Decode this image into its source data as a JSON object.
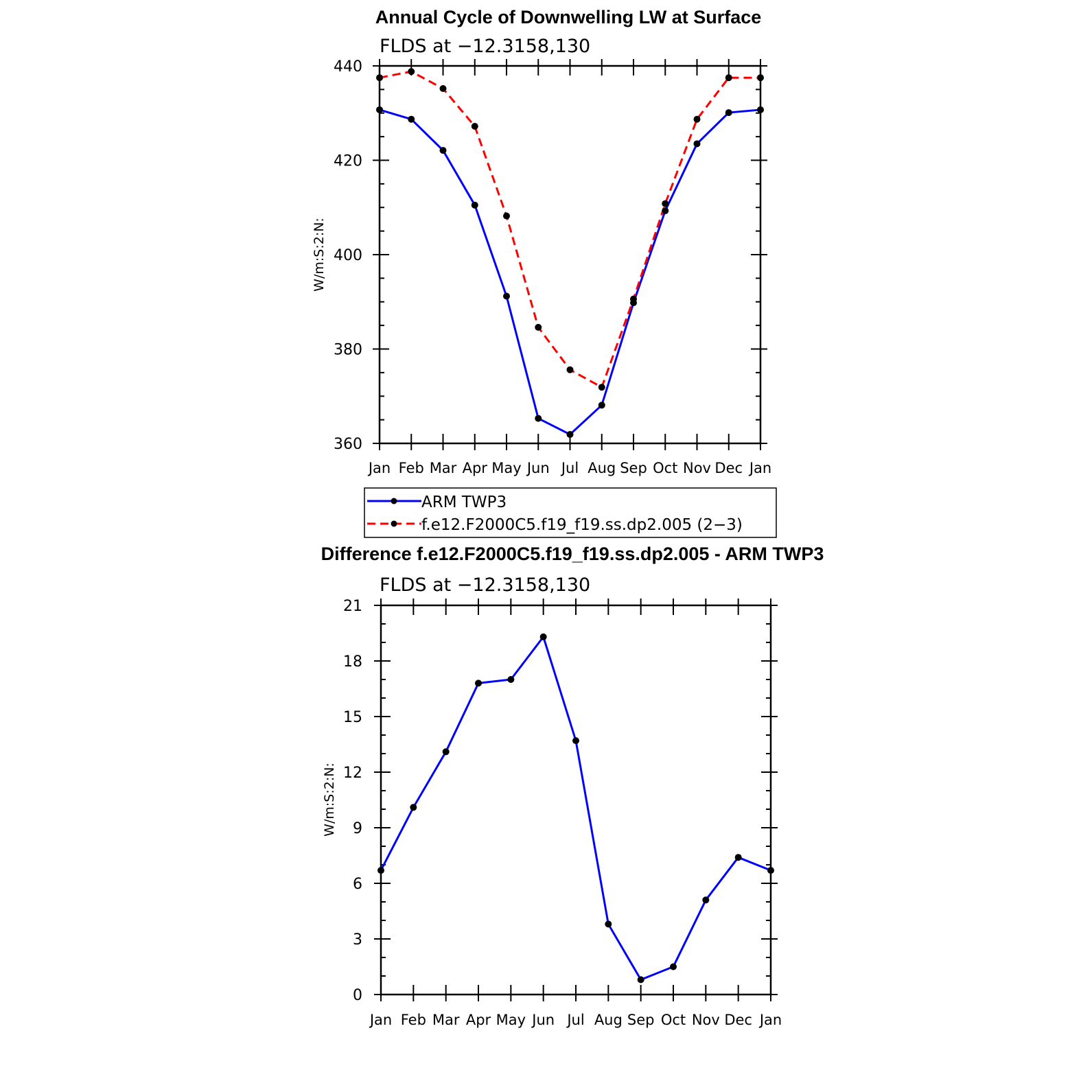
{
  "chart_data": [
    {
      "type": "line",
      "title": "Annual Cycle of Downwelling LW at Surface",
      "subtitle": "FLDS at −12.3158,130",
      "ylabel": "W/m:S:2:N:",
      "xlabel": "",
      "categories": [
        "Jan",
        "Feb",
        "Mar",
        "Apr",
        "May",
        "Jun",
        "Jul",
        "Aug",
        "Sep",
        "Oct",
        "Nov",
        "Dec",
        "Jan"
      ],
      "ylim": [
        360,
        440
      ],
      "yticks": [
        360,
        380,
        400,
        420,
        440
      ],
      "yticklabels": [
        "360",
        "380",
        "400",
        "420",
        "440"
      ],
      "legend_position": "below",
      "series": [
        {
          "name": "ARM TWP3",
          "color": "#0000ff",
          "dash": "solid",
          "values": [
            430.7,
            428.7,
            422.1,
            410.5,
            391.2,
            365.3,
            361.9,
            368.1,
            389.8,
            409.3,
            423.5,
            430.1,
            430.7
          ]
        },
        {
          "name": "f.e12.F2000C5.f19_f19.ss.dp2.005 (2−3)",
          "color": "#ff0000",
          "dash": "dashed",
          "values": [
            437.5,
            438.8,
            435.2,
            427.2,
            408.2,
            384.6,
            375.6,
            371.9,
            390.6,
            410.8,
            428.7,
            437.5,
            437.5
          ]
        }
      ]
    },
    {
      "type": "line",
      "title": "Difference f.e12.F2000C5.f19_f19.ss.dp2.005 - ARM TWP3",
      "subtitle": "FLDS at −12.3158,130",
      "ylabel": "W/m:S:2:N:",
      "xlabel": "",
      "categories": [
        "Jan",
        "Feb",
        "Mar",
        "Apr",
        "May",
        "Jun",
        "Jul",
        "Aug",
        "Sep",
        "Oct",
        "Nov",
        "Dec",
        "Jan"
      ],
      "ylim": [
        0,
        21
      ],
      "yticks": [
        0,
        3,
        6,
        9,
        12,
        15,
        18,
        21
      ],
      "yticklabels": [
        "0",
        "3",
        "6",
        "9",
        "12",
        "15",
        "18",
        "21"
      ],
      "series": [
        {
          "name": "Difference",
          "color": "#0000ff",
          "dash": "solid",
          "values": [
            6.7,
            10.1,
            13.1,
            16.8,
            17.0,
            19.3,
            13.7,
            3.8,
            0.8,
            1.5,
            5.1,
            7.4,
            6.7
          ]
        }
      ]
    }
  ]
}
